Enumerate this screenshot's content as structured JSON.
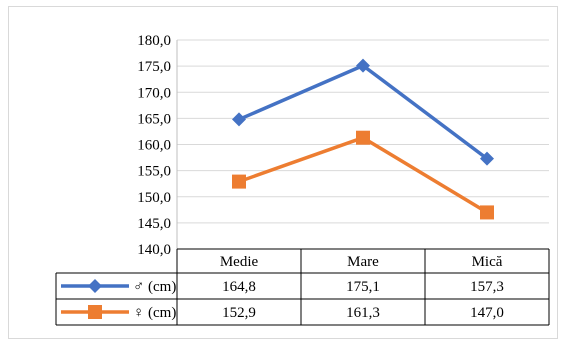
{
  "chart_data": {
    "type": "line",
    "categories": [
      "Medie",
      "Mare",
      "Mică"
    ],
    "series": [
      {
        "name": "♂ (cm)",
        "values": [
          164.8,
          175.1,
          157.3
        ],
        "labels": [
          "164,8",
          "175,1",
          "157,3"
        ],
        "color": "#4472c4",
        "marker": "diamond"
      },
      {
        "name": "♀ (cm)",
        "values": [
          152.9,
          161.3,
          147.0
        ],
        "labels": [
          "152,9",
          "161,3",
          "147,0"
        ],
        "color": "#ed7d31",
        "marker": "square"
      }
    ],
    "ylim": [
      140,
      180
    ],
    "yticks": [
      "140,0",
      "145,0",
      "150,0",
      "155,0",
      "160,0",
      "165,0",
      "170,0",
      "175,0",
      "180,0"
    ],
    "grid": true,
    "legend": "data-table",
    "title": "",
    "xlabel": "",
    "ylabel": ""
  }
}
